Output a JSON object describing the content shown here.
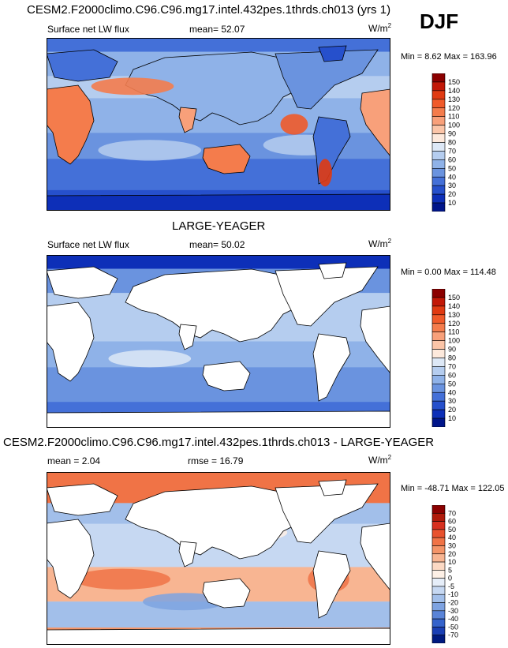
{
  "season": "DJF",
  "unit_base": "W/m",
  "unit_exp": "2",
  "chart_data": [
    {
      "type": "heatmap",
      "title": "CESM2.F2000climo.C96.C96.mg17.intel.432pes.1thrds.ch013 (yrs 1)",
      "variable": "Surface net LW flux",
      "stats": {
        "mean_label": "mean=",
        "mean": "52.07"
      },
      "minmax_text": "Min =  8.62 Max = 163.96",
      "units": "W/m2",
      "colorbar": {
        "levels": [
          "150",
          "140",
          "130",
          "120",
          "110",
          "100",
          "90",
          "80",
          "70",
          "60",
          "50",
          "40",
          "30",
          "20",
          "10"
        ],
        "colors": [
          "#8b0000",
          "#c21807",
          "#e03a12",
          "#f05a2a",
          "#f47c4c",
          "#f8a07a",
          "#fbc5a8",
          "#fde9dc",
          "#dde8f6",
          "#b5cdef",
          "#8fb2e8",
          "#6a93df",
          "#4470d8",
          "#2650cc",
          "#0d2fb8",
          "#00158a"
        ]
      },
      "background": "ocean and land filled"
    },
    {
      "type": "heatmap",
      "title": "LARGE-YEAGER",
      "variable": "Surface net LW flux",
      "stats": {
        "mean_label": "mean=",
        "mean": "50.02"
      },
      "minmax_text": "Min =  0.00 Max = 114.48",
      "units": "W/m2",
      "colorbar": {
        "levels": [
          "150",
          "140",
          "130",
          "120",
          "110",
          "100",
          "90",
          "80",
          "70",
          "60",
          "50",
          "40",
          "30",
          "20",
          "10"
        ],
        "colors": [
          "#8b0000",
          "#c21807",
          "#e03a12",
          "#f05a2a",
          "#f47c4c",
          "#f8a07a",
          "#fbc5a8",
          "#fde9dc",
          "#dde8f6",
          "#b5cdef",
          "#8fb2e8",
          "#6a93df",
          "#4470d8",
          "#2650cc",
          "#0d2fb8",
          "#00158a"
        ]
      },
      "background": "ocean only, land masked white"
    },
    {
      "type": "heatmap",
      "title": "CESM2.F2000climo.C96.C96.mg17.intel.432pes.1thrds.ch013 - LARGE-YEAGER",
      "stats": {
        "mean_label": "mean =",
        "mean": "2.04",
        "rmse_label": "rmse =",
        "rmse": "16.79"
      },
      "minmax_text": "Min = -48.71 Max = 122.05",
      "units": "W/m2",
      "colorbar": {
        "levels": [
          "70",
          "60",
          "50",
          "40",
          "30",
          "20",
          "10",
          "5",
          "0",
          "-5",
          "-10",
          "-20",
          "-30",
          "-40",
          "-50",
          "-70"
        ],
        "colors": [
          "#8b0000",
          "#b01a0a",
          "#d7301f",
          "#e8522e",
          "#f07346",
          "#f49468",
          "#f8b592",
          "#fcd9c4",
          "#fdf0e6",
          "#e6eef9",
          "#c6d8f2",
          "#a2bfea",
          "#7ea3e1",
          "#5a84d8",
          "#3563cc",
          "#1a3fb4",
          "#001a80"
        ]
      },
      "background": "ocean only, land masked white"
    }
  ]
}
